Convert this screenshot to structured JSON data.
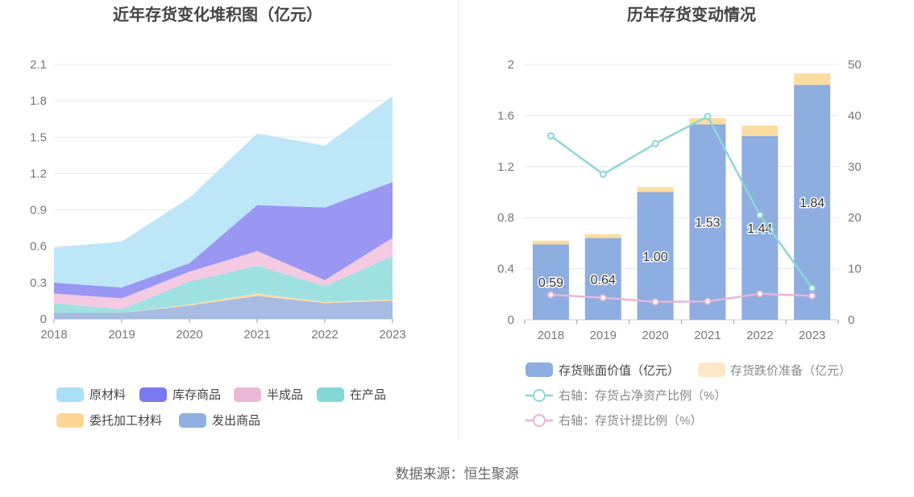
{
  "source_label": "数据来源：恒生聚源",
  "chart_data": [
    {
      "type": "area",
      "stacked": true,
      "title": "近年存货变化堆积图（亿元）",
      "x": [
        "2018",
        "2019",
        "2020",
        "2021",
        "2022",
        "2023"
      ],
      "ylim": [
        0,
        2.1
      ],
      "yticks": [
        "0",
        "0.3",
        "0.6",
        "0.9",
        "1.2",
        "1.5",
        "1.8",
        "2.1"
      ],
      "grid": true,
      "legend_position": "bottom",
      "series": [
        {
          "name": "发出商品",
          "color": "#9db4e0",
          "values": [
            0.05,
            0.05,
            0.11,
            0.19,
            0.13,
            0.15
          ]
        },
        {
          "name": "委托加工材料",
          "color": "#fdd79d",
          "values": [
            0.0,
            0.0,
            0.01,
            0.02,
            0.01,
            0.01
          ]
        },
        {
          "name": "在产品",
          "color": "#95dede",
          "values": [
            0.08,
            0.03,
            0.19,
            0.23,
            0.13,
            0.36
          ]
        },
        {
          "name": "半成品",
          "color": "#f2c4df",
          "values": [
            0.08,
            0.09,
            0.08,
            0.12,
            0.05,
            0.15
          ]
        },
        {
          "name": "库存商品",
          "color": "#8f8cf2",
          "values": [
            0.09,
            0.09,
            0.07,
            0.38,
            0.6,
            0.46
          ]
        },
        {
          "name": "原材料",
          "color": "#b6e4f8",
          "values": [
            0.29,
            0.38,
            0.54,
            0.59,
            0.51,
            0.71
          ]
        }
      ],
      "legend_order": [
        "原材料",
        "库存商品",
        "半成品",
        "在产品",
        "委托加工材料",
        "发出商品"
      ],
      "legend_colors": {
        "原材料": "#a9dff7",
        "库存商品": "#7b79ef",
        "半成品": "#eab9d8",
        "在产品": "#84d7d7",
        "委托加工材料": "#fdd594",
        "发出商品": "#8fb0e0"
      }
    },
    {
      "type": "bar",
      "stacked": true,
      "title": "历年存货变动情况",
      "categories": [
        "2018",
        "2019",
        "2020",
        "2021",
        "2022",
        "2023"
      ],
      "ylim": [
        0,
        2
      ],
      "yticks": [
        "0",
        "0.4",
        "0.8",
        "1.2",
        "1.6",
        "2"
      ],
      "y2lim": [
        0,
        50
      ],
      "y2ticks": [
        "0",
        "10",
        "20",
        "30",
        "40",
        "50"
      ],
      "grid": true,
      "legend_position": "bottom",
      "series": [
        {
          "name": "存货账面价值（亿元）",
          "kind": "bar",
          "axis": "left",
          "color": "#8eade0",
          "values": [
            0.59,
            0.64,
            1.0,
            1.53,
            1.44,
            1.84
          ],
          "labels": [
            "0.59",
            "0.64",
            "1.00",
            "1.53",
            "1.44",
            "1.84"
          ]
        },
        {
          "name": "存货跌价准备（亿元）",
          "kind": "bar",
          "axis": "left",
          "color": "#fcdca0",
          "legend_color": "#fde7c6",
          "values": [
            0.03,
            0.03,
            0.04,
            0.05,
            0.08,
            0.09
          ]
        },
        {
          "name": "右轴：存货占净资产比例（%）",
          "kind": "line",
          "axis": "right",
          "color": "#8cd6d6",
          "values": [
            36.0,
            28.5,
            34.5,
            39.8,
            20.5,
            6.2
          ]
        },
        {
          "name": "右轴：存货计提比例（%）",
          "kind": "line",
          "axis": "right",
          "color": "#e6b6d8",
          "values": [
            4.9,
            4.3,
            3.5,
            3.6,
            5.1,
            4.7
          ]
        }
      ]
    }
  ]
}
